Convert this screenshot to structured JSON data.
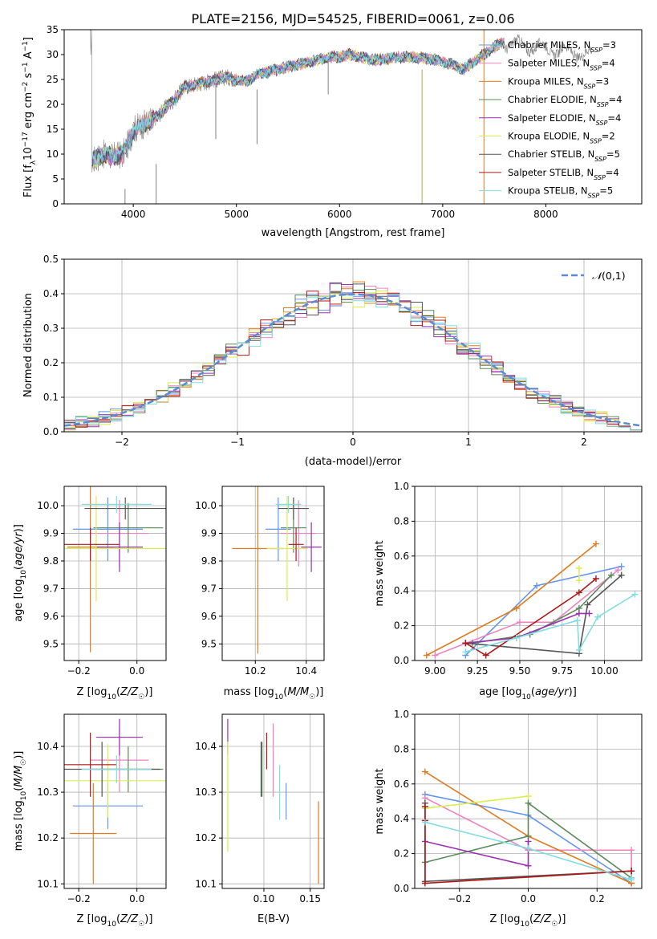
{
  "figure_title": "PLATE=2156, MJD=54525, FIBERID=0061, z=0.06",
  "colors": {
    "chabrier_miles": "#6495ed",
    "salpeter_miles": "#ee82be",
    "kroupa_miles": "#e07b20",
    "chabrier_elodie": "#5a8a5a",
    "salpeter_elodie": "#9a30b0",
    "kroupa_elodie": "#d8ee50",
    "chabrier_stelib": "#555555",
    "salpeter_stelib": "#b01818",
    "kroupa_stelib": "#80dde0",
    "data": "#808080",
    "normal_curve": "#5b8bd0"
  },
  "chart_data": [
    {
      "id": "spectrum",
      "type": "line",
      "title": "",
      "xlabel": "wavelength [Angstrom, rest frame]",
      "ylabel": "Flux [fλ10⁻¹⁷ erg cm⁻² s⁻¹ A⁻¹]",
      "xlim": [
        3330,
        8930
      ],
      "ylim": [
        0,
        35
      ],
      "xticks": [
        4000,
        5000,
        6000,
        7000,
        8000
      ],
      "yticks": [
        0,
        5,
        10,
        15,
        20,
        25,
        30,
        35
      ],
      "grid": false,
      "legend_position": "lower-right",
      "legend": [
        "Chabrier MILES, N_SSP=3",
        "Salpeter MILES, N_SSP=4",
        "Kroupa MILES, N_SSP=3",
        "Chabrier ELODIE, N_SSP=4",
        "Salpeter ELODIE, N_SSP=4",
        "Kroupa ELODIE, N_SSP=2",
        "Chabrier STELIB, N_SSP=5",
        "Salpeter STELIB, N_SSP=4",
        "Kroupa STELIB, N_SSP=5"
      ],
      "continuum": {
        "x": [
          3600,
          3700,
          3800,
          3900,
          3950,
          4000,
          4100,
          4200,
          4300,
          4400,
          4500,
          4600,
          4700,
          4800,
          4900,
          5000,
          5100,
          5200,
          5300,
          5400,
          5500,
          5600,
          5700,
          5800,
          5900,
          6000,
          6100,
          6200,
          6300,
          6400,
          6500,
          6600,
          6700,
          6800,
          6900,
          7000,
          7100,
          7200,
          7300,
          7400,
          7500,
          7600
        ],
        "y": [
          8.5,
          10,
          9.5,
          10,
          12,
          15,
          16,
          17,
          19,
          21,
          23.5,
          24,
          24.5,
          25,
          25.5,
          25,
          24.5,
          26,
          26.5,
          27,
          27.5,
          28,
          28.5,
          29,
          29.5,
          29.5,
          30,
          29.5,
          29,
          29,
          29.3,
          29.5,
          29.5,
          29.3,
          29,
          28.5,
          28,
          27,
          28.5,
          30,
          31.5,
          32.5
        ]
      },
      "data_extent": [
        3580,
        8450
      ],
      "model_extent": [
        3600,
        7600
      ],
      "spikes": [
        {
          "x": 3920,
          "ymin": 0,
          "ymax": 3
        },
        {
          "x": 4222,
          "ymin": 0,
          "ymax": 8
        },
        {
          "x": 4800,
          "ymin": 13,
          "ymax": 26
        },
        {
          "x": 5200,
          "ymin": 12,
          "ymax": 23
        },
        {
          "x": 5890,
          "ymin": 22,
          "ymax": 29
        },
        {
          "x": 6800,
          "ymin": 0,
          "ymax": 27
        },
        {
          "x": 7400,
          "ymin": 0,
          "ymax": 35
        }
      ]
    },
    {
      "id": "residuals",
      "type": "histogram",
      "xlabel": "(data-model)/error",
      "ylabel": "Normed distribution",
      "xlim": [
        -2.5,
        2.5
      ],
      "ylim": [
        0,
        0.5
      ],
      "xticks": [
        -2,
        -1,
        0,
        1,
        2
      ],
      "yticks": [
        0,
        0.1,
        0.2,
        0.3,
        0.4,
        0.5
      ],
      "grid": true,
      "legend_position": "top-right",
      "bin_width": 0.1,
      "bins_from": -2.5,
      "bins_to": 2.5,
      "reference_curve": {
        "name": "N(0,1)",
        "mean": 0,
        "sigma": 1
      }
    },
    {
      "id": "age_vs_z",
      "type": "errorbar",
      "xlabel": "Z [log10(Z/Z☉)]",
      "ylabel": "age  [log10(age/yr)]",
      "xlim": [
        -0.25,
        0.1
      ],
      "ylim": [
        9.44,
        10.07
      ],
      "xticks": [
        -0.2,
        0.0
      ],
      "yticks": [
        9.5,
        9.6,
        9.7,
        9.8,
        9.9,
        10.0
      ],
      "grid": true,
      "points": [
        {
          "series": "chabrier_miles",
          "x": -0.1,
          "xerr": 0.12,
          "y": 9.915,
          "yerr": 0.115
        },
        {
          "series": "salpeter_miles",
          "x": -0.06,
          "xerr": 0.1,
          "y": 9.9,
          "yerr": 0.12
        },
        {
          "series": "kroupa_miles",
          "x": -0.16,
          "xerr": 0.08,
          "y": 9.85,
          "yerr": 0.38
        },
        {
          "series": "chabrier_elodie",
          "x": -0.03,
          "xerr": 0.12,
          "y": 9.92,
          "yerr": 0.09
        },
        {
          "series": "salpeter_elodie",
          "x": -0.06,
          "xerr": 0.08,
          "y": 9.85,
          "yerr": 0.09
        },
        {
          "series": "kroupa_elodie",
          "x": -0.14,
          "xerr": 0.24,
          "y": 9.845,
          "yerr": 0.19
        },
        {
          "series": "chabrier_stelib",
          "x": -0.04,
          "xerr": 0.14,
          "y": 9.99,
          "yerr": 0.04
        },
        {
          "series": "salpeter_stelib",
          "x": -0.16,
          "xerr": 0.1,
          "y": 9.86,
          "yerr": 0.06
        },
        {
          "series": "kroupa_stelib",
          "x": -0.07,
          "xerr": 0.12,
          "y": 10.005,
          "yerr": 0.03
        }
      ]
    },
    {
      "id": "age_vs_mass",
      "type": "errorbar",
      "xlabel": "mass [log10(M/M☉)]",
      "ylabel": "",
      "xlim": [
        10.07,
        10.47
      ],
      "ylim": [
        9.44,
        10.07
      ],
      "xticks": [
        10.2,
        10.4
      ],
      "yticks": [
        9.5,
        9.6,
        9.7,
        9.8,
        9.9,
        10.0
      ],
      "grid": true,
      "points": [
        {
          "series": "chabrier_miles",
          "x": 10.29,
          "xerr": 0.05,
          "y": 9.915,
          "yerr": 0.115
        },
        {
          "series": "salpeter_miles",
          "x": 10.37,
          "xerr": 0.07,
          "y": 9.9,
          "yerr": 0.12
        },
        {
          "series": "kroupa_miles",
          "x": 10.21,
          "xerr": 0.1,
          "y": 9.845,
          "yerr": 0.38
        },
        {
          "series": "chabrier_elodie",
          "x": 10.35,
          "xerr": 0.05,
          "y": 9.92,
          "yerr": 0.09
        },
        {
          "series": "salpeter_elodie",
          "x": 10.42,
          "xerr": 0.04,
          "y": 9.85,
          "yerr": 0.09
        },
        {
          "series": "kroupa_elodie",
          "x": 10.325,
          "xerr": 0.08,
          "y": 9.845,
          "yerr": 0.19
        },
        {
          "series": "chabrier_stelib",
          "x": 10.35,
          "xerr": 0.06,
          "y": 9.99,
          "yerr": 0.04
        },
        {
          "series": "salpeter_stelib",
          "x": 10.36,
          "xerr": 0.03,
          "y": 9.86,
          "yerr": 0.06
        },
        {
          "series": "kroupa_stelib",
          "x": 10.33,
          "xerr": 0.05,
          "y": 10.005,
          "yerr": 0.03
        }
      ]
    },
    {
      "id": "mass_weight_vs_age",
      "type": "line",
      "xlabel": "age  [log10(age/yr)]",
      "ylabel": "mass weight",
      "xlim": [
        8.88,
        10.22
      ],
      "ylim": [
        0,
        1
      ],
      "xticks": [
        9.0,
        9.25,
        9.5,
        9.75,
        10.0
      ],
      "yticks": [
        0,
        0.2,
        0.4,
        0.6,
        0.8,
        1.0
      ],
      "grid": true,
      "series": [
        {
          "key": "chabrier_miles",
          "x": [
            9.18,
            9.6,
            10.1
          ],
          "y": [
            0.03,
            0.43,
            0.54
          ]
        },
        {
          "key": "salpeter_miles",
          "x": [
            9.0,
            9.5,
            9.7,
            10.08
          ],
          "y": [
            0.03,
            0.22,
            0.22,
            0.52
          ]
        },
        {
          "key": "kroupa_miles",
          "x": [
            8.95,
            9.48,
            9.95
          ],
          "y": [
            0.03,
            0.3,
            0.67
          ]
        },
        {
          "key": "chabrier_elodie",
          "x": [
            9.22,
            9.56,
            9.85,
            10.04
          ],
          "y": [
            0.1,
            0.15,
            0.3,
            0.49
          ]
        },
        {
          "key": "salpeter_elodie",
          "x": [
            9.18,
            9.48,
            9.85,
            9.91
          ],
          "y": [
            0.1,
            0.13,
            0.27,
            0.27
          ]
        },
        {
          "key": "kroupa_elodie",
          "x": [
            9.85,
            9.85
          ],
          "y": [
            0.46,
            0.53
          ]
        },
        {
          "key": "chabrier_stelib",
          "x": [
            9.18,
            9.85,
            9.9,
            10.1
          ],
          "y": [
            0.1,
            0.04,
            0.32,
            0.49
          ]
        },
        {
          "key": "salpeter_stelib",
          "x": [
            9.18,
            9.3,
            9.85,
            9.95
          ],
          "y": [
            0.1,
            0.03,
            0.39,
            0.47
          ]
        },
        {
          "key": "kroupa_stelib",
          "x": [
            9.18,
            9.48,
            9.84,
            9.85,
            9.96,
            10.18
          ],
          "y": [
            0.05,
            0.13,
            0.23,
            0.06,
            0.25,
            0.38
          ]
        }
      ]
    },
    {
      "id": "mass_vs_z",
      "type": "errorbar",
      "xlabel": "Z [log10(Z/Z☉)]",
      "ylabel": "mass [log10(M/M☉)]",
      "xlim": [
        -0.25,
        0.1
      ],
      "ylim": [
        10.09,
        10.47
      ],
      "xticks": [
        -0.2,
        0.0
      ],
      "yticks": [
        10.1,
        10.2,
        10.3,
        10.4
      ],
      "grid": true,
      "points": [
        {
          "series": "chabrier_miles",
          "x": -0.1,
          "xerr": 0.12,
          "y": 10.27,
          "yerr": 0.05
        },
        {
          "series": "salpeter_miles",
          "x": -0.06,
          "xerr": 0.1,
          "y": 10.37,
          "yerr": 0.07
        },
        {
          "series": "kroupa_miles",
          "x": -0.15,
          "xerr": 0.08,
          "y": 10.21,
          "yerr": 0.11
        },
        {
          "series": "chabrier_elodie",
          "x": -0.03,
          "xerr": 0.12,
          "y": 10.35,
          "yerr": 0.05
        },
        {
          "series": "salpeter_elodie",
          "x": -0.06,
          "xerr": 0.08,
          "y": 10.42,
          "yerr": 0.04
        },
        {
          "series": "kroupa_elodie",
          "x": -0.1,
          "xerr": 0.2,
          "y": 10.325,
          "yerr": 0.08
        },
        {
          "series": "chabrier_stelib",
          "x": -0.12,
          "xerr": 0.2,
          "y": 10.35,
          "yerr": 0.06
        },
        {
          "series": "salpeter_stelib",
          "x": -0.16,
          "xerr": 0.09,
          "y": 10.36,
          "yerr": 0.07
        },
        {
          "series": "kroupa_stelib",
          "x": -0.07,
          "xerr": 0.12,
          "y": 10.35,
          "yerr": 0.03
        }
      ]
    },
    {
      "id": "mass_vs_ebv",
      "type": "errorbar",
      "xlabel": "E(B-V)",
      "ylabel": "",
      "xlim": [
        0.055,
        0.165
      ],
      "ylim": [
        10.09,
        10.47
      ],
      "xticks": [
        0.1,
        0.15
      ],
      "yticks": [
        10.1,
        10.2,
        10.3,
        10.4
      ],
      "grid": true,
      "points": [
        {
          "series": "chabrier_miles",
          "x": 0.124,
          "xerr": 0,
          "y": 10.28,
          "yerr": 0.04
        },
        {
          "series": "salpeter_miles",
          "x": 0.11,
          "xerr": 0,
          "y": 10.37,
          "yerr": 0.08
        },
        {
          "series": "kroupa_miles",
          "x": 0.159,
          "xerr": 0,
          "y": 10.19,
          "yerr": 0.09
        },
        {
          "series": "chabrier_elodie",
          "x": 0.098,
          "xerr": 0,
          "y": 10.35,
          "yerr": 0.06
        },
        {
          "series": "salpeter_elodie",
          "x": 0.061,
          "xerr": 0,
          "y": 10.42,
          "yerr": 0.04
        },
        {
          "series": "kroupa_elodie",
          "x": 0.061,
          "xerr": 0,
          "y": 10.29,
          "yerr": 0.12
        },
        {
          "series": "chabrier_stelib",
          "x": 0.097,
          "xerr": 0,
          "y": 10.35,
          "yerr": 0.06
        },
        {
          "series": "salpeter_stelib",
          "x": 0.103,
          "xerr": 0,
          "y": 10.39,
          "yerr": 0.04
        },
        {
          "series": "kroupa_stelib",
          "x": 0.117,
          "xerr": 0,
          "y": 10.3,
          "yerr": 0.06
        }
      ]
    },
    {
      "id": "mass_weight_vs_z",
      "type": "line",
      "xlabel": "Z [log10(Z/Z☉)]",
      "ylabel": "mass weight",
      "xlim": [
        -0.33,
        0.33
      ],
      "ylim": [
        0,
        1
      ],
      "xticks": [
        -0.2,
        0.0,
        0.2
      ],
      "yticks": [
        0,
        0.2,
        0.4,
        0.6,
        0.8,
        1.0
      ],
      "grid": true,
      "series": [
        {
          "key": "chabrier_miles",
          "x": [
            -0.3,
            0.0,
            0.3
          ],
          "y": [
            0.54,
            0.42,
            0.03
          ]
        },
        {
          "key": "salpeter_miles",
          "x": [
            -0.3,
            0.0,
            0.3,
            0.3
          ],
          "y": [
            0.52,
            0.22,
            0.22,
            0.03
          ]
        },
        {
          "key": "kroupa_miles",
          "x": [
            -0.3,
            0.0,
            0.3
          ],
          "y": [
            0.67,
            0.3,
            0.03
          ]
        },
        {
          "key": "chabrier_elodie",
          "x": [
            -0.3,
            0.0,
            0.0,
            0.3
          ],
          "y": [
            0.15,
            0.3,
            0.49,
            0.06
          ]
        },
        {
          "key": "salpeter_elodie",
          "x": [
            -0.3,
            0.0,
            0.0
          ],
          "y": [
            0.27,
            0.13,
            0.27
          ]
        },
        {
          "key": "kroupa_elodie",
          "x": [
            -0.3,
            0.0
          ],
          "y": [
            0.46,
            0.53
          ]
        },
        {
          "key": "chabrier_stelib",
          "x": [
            -0.3,
            -0.3,
            0.3,
            0.3
          ],
          "y": [
            0.49,
            0.04,
            0.1,
            0.1
          ]
        },
        {
          "key": "salpeter_stelib",
          "x": [
            -0.3,
            -0.3,
            -0.3,
            0.3
          ],
          "y": [
            0.47,
            0.39,
            0.03,
            0.1
          ]
        },
        {
          "key": "kroupa_stelib",
          "x": [
            -0.3,
            0.0,
            0.3,
            0.3
          ],
          "y": [
            0.38,
            0.23,
            0.05,
            0.06
          ]
        }
      ]
    }
  ]
}
